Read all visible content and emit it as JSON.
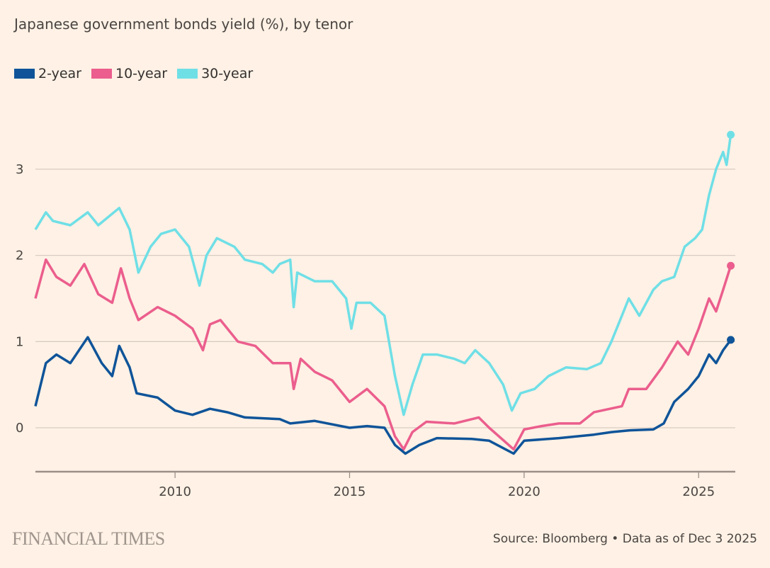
{
  "colors": {
    "background": "#fff1e5",
    "grid": "#d8ccc2",
    "axis": "#9b8f87"
  },
  "chart_data": {
    "type": "line",
    "title": "Japanese government bonds yield (%), by tenor",
    "xlabel": "",
    "ylabel": "",
    "xlim": [
      2006.0,
      2026.05
    ],
    "ylim": [
      -0.5,
      3.6
    ],
    "yticks": [
      0,
      1,
      2,
      3
    ],
    "xticks": [
      2010,
      2015,
      2020,
      2025
    ],
    "grid": true,
    "legend_position": "top-left",
    "series": [
      {
        "name": "2-year",
        "color": "#0f5499",
        "points": [
          [
            2006.0,
            0.25
          ],
          [
            2006.3,
            0.75
          ],
          [
            2006.6,
            0.85
          ],
          [
            2007.0,
            0.75
          ],
          [
            2007.5,
            1.05
          ],
          [
            2007.9,
            0.75
          ],
          [
            2008.2,
            0.6
          ],
          [
            2008.4,
            0.95
          ],
          [
            2008.7,
            0.7
          ],
          [
            2008.9,
            0.4
          ],
          [
            2009.5,
            0.35
          ],
          [
            2010.0,
            0.2
          ],
          [
            2010.5,
            0.15
          ],
          [
            2011.0,
            0.22
          ],
          [
            2011.5,
            0.18
          ],
          [
            2012.0,
            0.12
          ],
          [
            2013.0,
            0.1
          ],
          [
            2013.3,
            0.05
          ],
          [
            2014.0,
            0.08
          ],
          [
            2015.0,
            0.0
          ],
          [
            2015.5,
            0.02
          ],
          [
            2016.0,
            0.0
          ],
          [
            2016.3,
            -0.2
          ],
          [
            2016.6,
            -0.3
          ],
          [
            2017.0,
            -0.2
          ],
          [
            2017.5,
            -0.12
          ],
          [
            2018.5,
            -0.13
          ],
          [
            2019.0,
            -0.15
          ],
          [
            2019.7,
            -0.3
          ],
          [
            2020.0,
            -0.15
          ],
          [
            2021.0,
            -0.12
          ],
          [
            2022.0,
            -0.08
          ],
          [
            2022.5,
            -0.05
          ],
          [
            2023.0,
            -0.03
          ],
          [
            2023.7,
            -0.02
          ],
          [
            2024.0,
            0.05
          ],
          [
            2024.3,
            0.3
          ],
          [
            2024.7,
            0.45
          ],
          [
            2025.0,
            0.6
          ],
          [
            2025.3,
            0.85
          ],
          [
            2025.5,
            0.75
          ],
          [
            2025.7,
            0.9
          ],
          [
            2025.92,
            1.02
          ]
        ]
      },
      {
        "name": "10-year",
        "color": "#eb5e8d",
        "points": [
          [
            2006.0,
            1.5
          ],
          [
            2006.3,
            1.95
          ],
          [
            2006.6,
            1.75
          ],
          [
            2007.0,
            1.65
          ],
          [
            2007.4,
            1.9
          ],
          [
            2007.8,
            1.55
          ],
          [
            2008.2,
            1.45
          ],
          [
            2008.45,
            1.85
          ],
          [
            2008.7,
            1.5
          ],
          [
            2008.95,
            1.25
          ],
          [
            2009.5,
            1.4
          ],
          [
            2010.0,
            1.3
          ],
          [
            2010.5,
            1.15
          ],
          [
            2010.8,
            0.9
          ],
          [
            2011.0,
            1.2
          ],
          [
            2011.3,
            1.25
          ],
          [
            2011.8,
            1.0
          ],
          [
            2012.3,
            0.95
          ],
          [
            2012.8,
            0.75
          ],
          [
            2013.3,
            0.75
          ],
          [
            2013.4,
            0.45
          ],
          [
            2013.6,
            0.8
          ],
          [
            2014.0,
            0.65
          ],
          [
            2014.5,
            0.55
          ],
          [
            2015.0,
            0.3
          ],
          [
            2015.5,
            0.45
          ],
          [
            2016.0,
            0.25
          ],
          [
            2016.3,
            -0.1
          ],
          [
            2016.55,
            -0.25
          ],
          [
            2016.8,
            -0.05
          ],
          [
            2017.2,
            0.07
          ],
          [
            2018.0,
            0.05
          ],
          [
            2018.7,
            0.12
          ],
          [
            2019.0,
            0.0
          ],
          [
            2019.7,
            -0.25
          ],
          [
            2020.0,
            -0.02
          ],
          [
            2020.5,
            0.02
          ],
          [
            2021.0,
            0.05
          ],
          [
            2021.6,
            0.05
          ],
          [
            2022.0,
            0.18
          ],
          [
            2022.8,
            0.25
          ],
          [
            2023.0,
            0.45
          ],
          [
            2023.5,
            0.45
          ],
          [
            2023.95,
            0.7
          ],
          [
            2024.4,
            1.0
          ],
          [
            2024.7,
            0.85
          ],
          [
            2025.0,
            1.15
          ],
          [
            2025.3,
            1.5
          ],
          [
            2025.5,
            1.35
          ],
          [
            2025.7,
            1.6
          ],
          [
            2025.92,
            1.88
          ]
        ]
      },
      {
        "name": "30-year",
        "color": "#6fdfe6",
        "points": [
          [
            2006.0,
            2.3
          ],
          [
            2006.3,
            2.5
          ],
          [
            2006.5,
            2.4
          ],
          [
            2007.0,
            2.35
          ],
          [
            2007.5,
            2.5
          ],
          [
            2007.8,
            2.35
          ],
          [
            2008.4,
            2.55
          ],
          [
            2008.7,
            2.3
          ],
          [
            2008.95,
            1.8
          ],
          [
            2009.3,
            2.1
          ],
          [
            2009.6,
            2.25
          ],
          [
            2010.0,
            2.3
          ],
          [
            2010.4,
            2.1
          ],
          [
            2010.7,
            1.65
          ],
          [
            2010.9,
            2.0
          ],
          [
            2011.2,
            2.2
          ],
          [
            2011.7,
            2.1
          ],
          [
            2012.0,
            1.95
          ],
          [
            2012.5,
            1.9
          ],
          [
            2012.8,
            1.8
          ],
          [
            2013.0,
            1.9
          ],
          [
            2013.3,
            1.95
          ],
          [
            2013.4,
            1.4
          ],
          [
            2013.5,
            1.8
          ],
          [
            2014.0,
            1.7
          ],
          [
            2014.5,
            1.7
          ],
          [
            2014.9,
            1.5
          ],
          [
            2015.05,
            1.15
          ],
          [
            2015.2,
            1.45
          ],
          [
            2015.6,
            1.45
          ],
          [
            2016.0,
            1.3
          ],
          [
            2016.3,
            0.6
          ],
          [
            2016.55,
            0.15
          ],
          [
            2016.8,
            0.5
          ],
          [
            2017.1,
            0.85
          ],
          [
            2017.5,
            0.85
          ],
          [
            2018.0,
            0.8
          ],
          [
            2018.3,
            0.75
          ],
          [
            2018.6,
            0.9
          ],
          [
            2019.0,
            0.75
          ],
          [
            2019.4,
            0.5
          ],
          [
            2019.65,
            0.2
          ],
          [
            2019.9,
            0.4
          ],
          [
            2020.3,
            0.45
          ],
          [
            2020.7,
            0.6
          ],
          [
            2021.2,
            0.7
          ],
          [
            2021.8,
            0.68
          ],
          [
            2022.2,
            0.75
          ],
          [
            2022.5,
            1.0
          ],
          [
            2022.8,
            1.3
          ],
          [
            2023.0,
            1.5
          ],
          [
            2023.3,
            1.3
          ],
          [
            2023.7,
            1.6
          ],
          [
            2023.95,
            1.7
          ],
          [
            2024.3,
            1.75
          ],
          [
            2024.6,
            2.1
          ],
          [
            2024.9,
            2.2
          ],
          [
            2025.1,
            2.3
          ],
          [
            2025.3,
            2.7
          ],
          [
            2025.5,
            3.0
          ],
          [
            2025.7,
            3.2
          ],
          [
            2025.8,
            3.05
          ],
          [
            2025.92,
            3.4
          ]
        ]
      }
    ]
  },
  "footer": {
    "brand": "FINANCIAL TIMES",
    "source": "Source: Bloomberg • Data as of Dec 3 2025"
  }
}
